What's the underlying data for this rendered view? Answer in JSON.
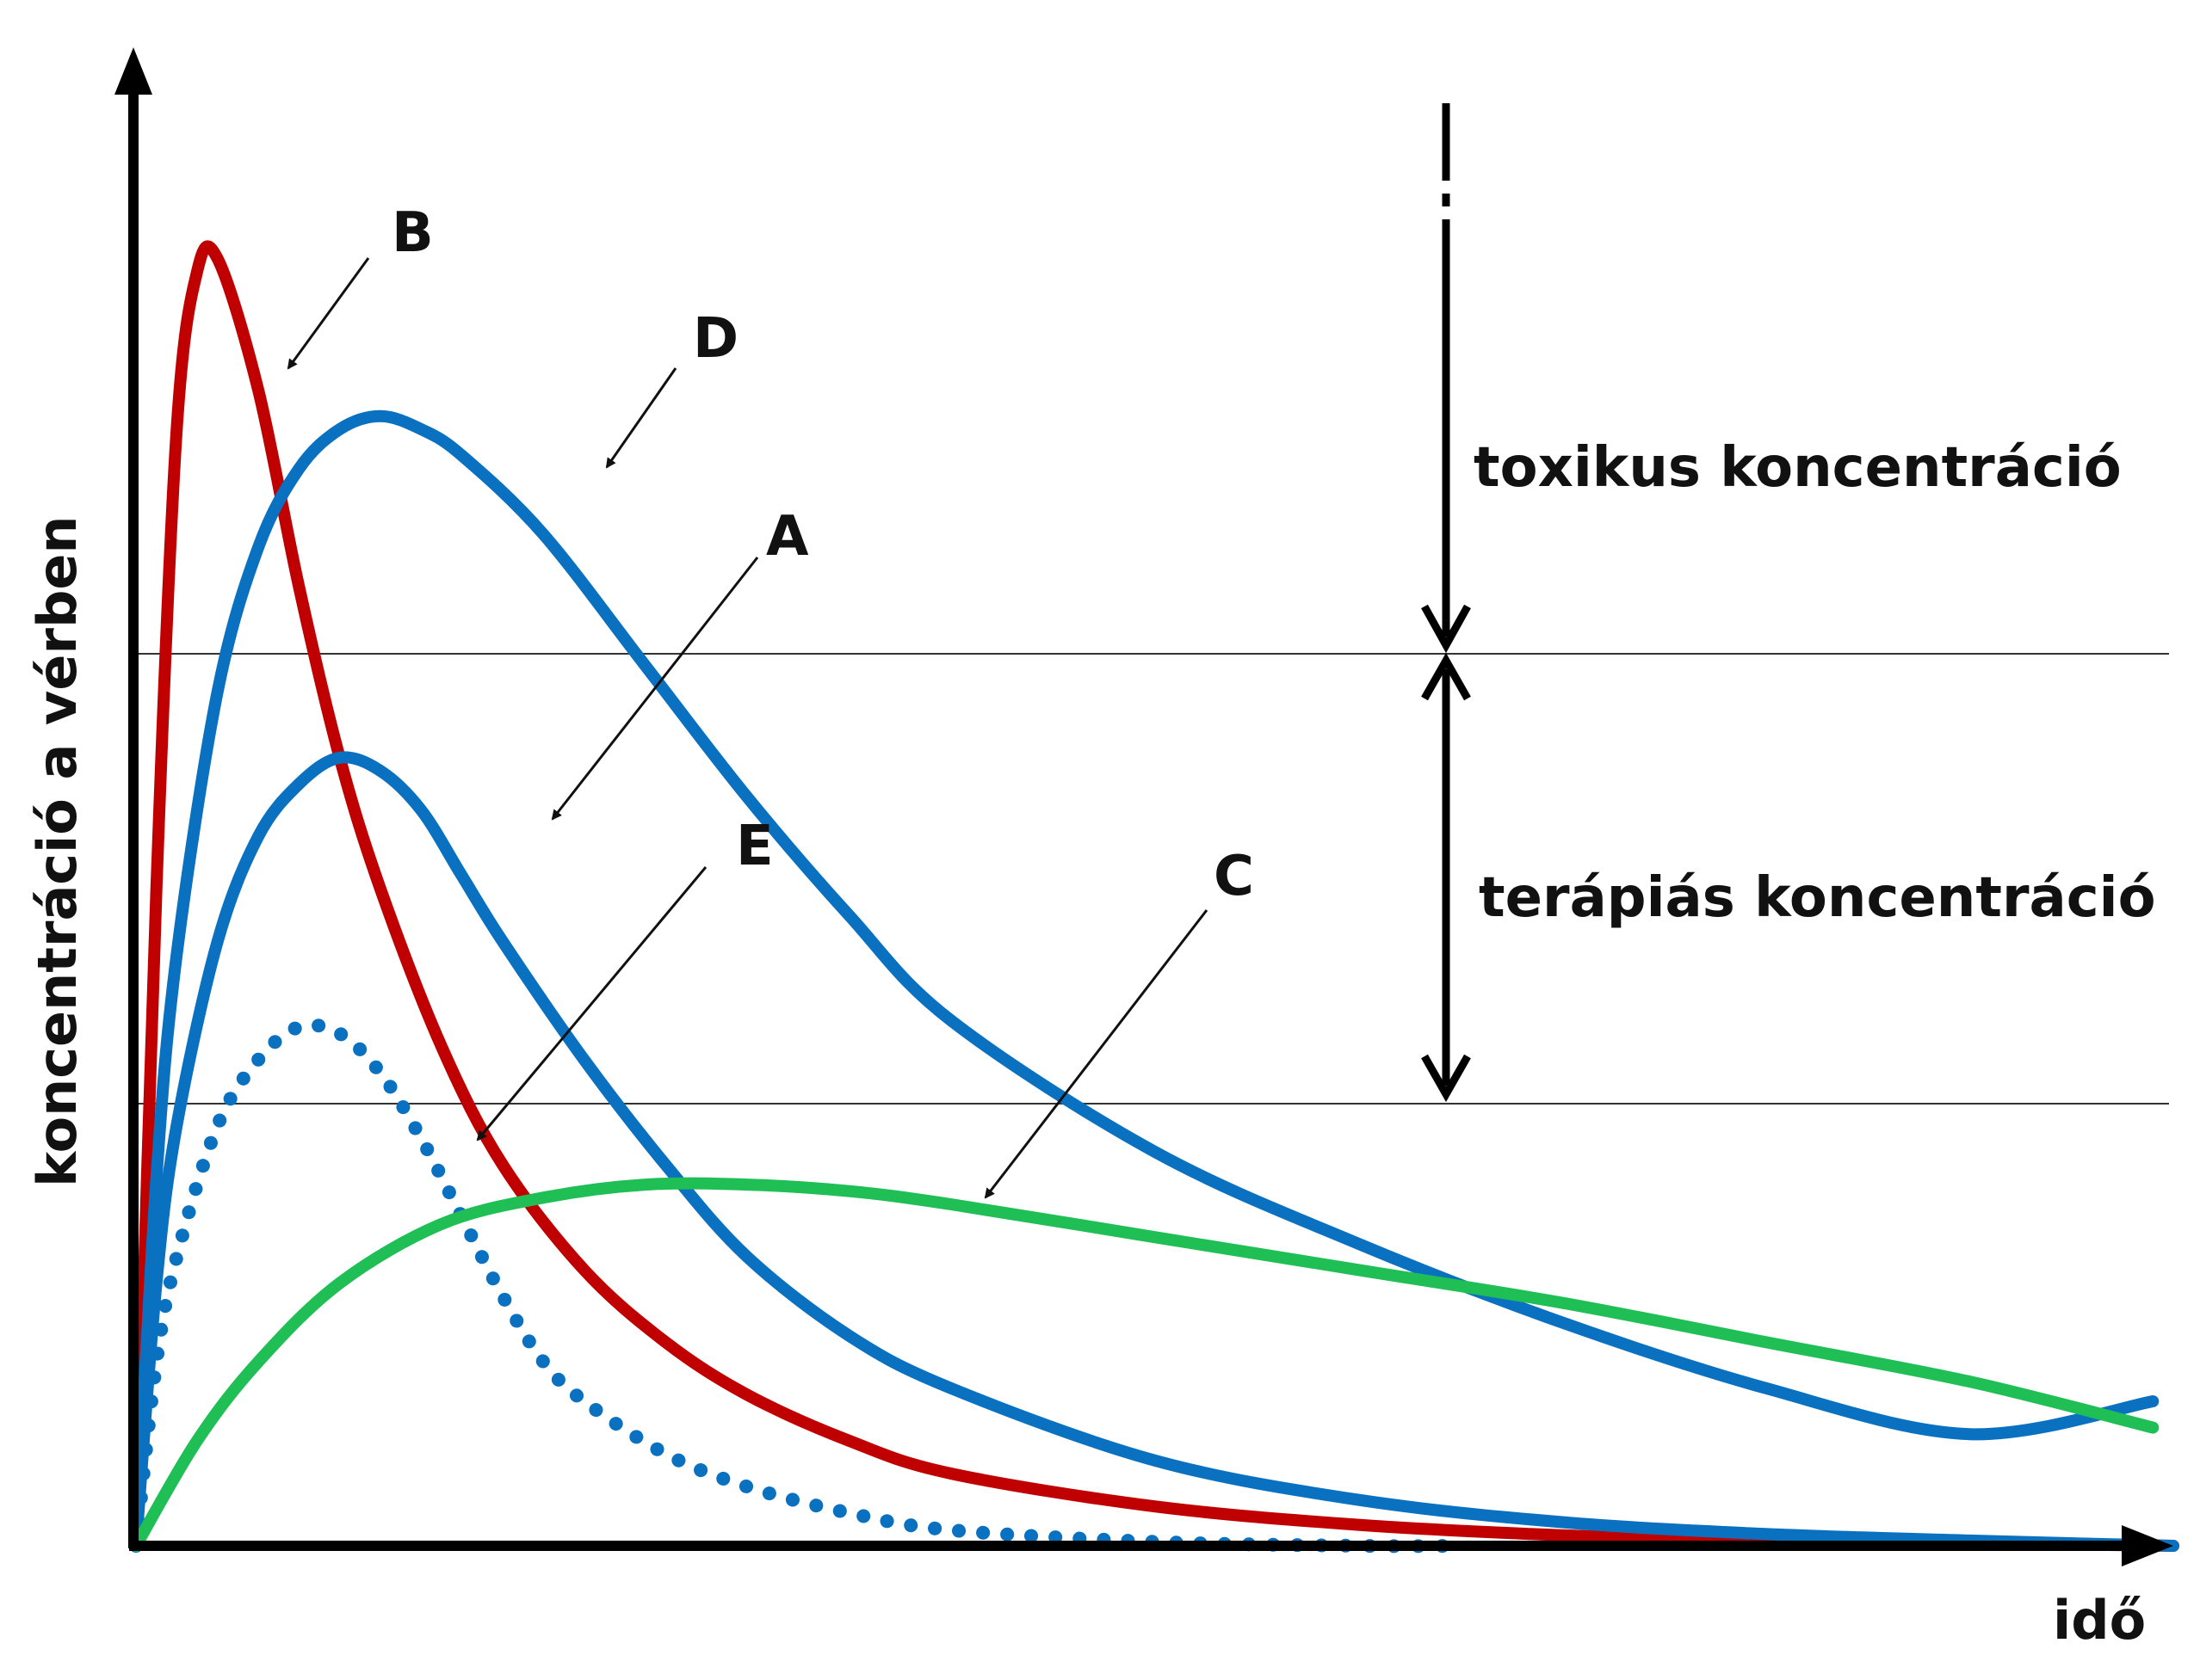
{
  "chart_data": {
    "type": "line",
    "xlabel": "idő",
    "ylabel": "koncentráció a vérben",
    "xlim": [
      0,
      100
    ],
    "ylim": [
      0,
      100
    ],
    "grid": false,
    "thresholds": [
      {
        "name": "toxic",
        "value": 66.7
      },
      {
        "name": "therapeutic_min",
        "value": 33.6
      }
    ],
    "zones": [
      {
        "label": "toxikus koncentráció"
      },
      {
        "label": "terápiás koncentráció"
      }
    ],
    "series": [
      {
        "name": "B",
        "color": "#c00000",
        "dotted": false,
        "x": [
          0,
          1,
          2,
          3,
          4,
          6,
          8,
          10,
          12,
          15,
          18,
          22,
          26,
          30,
          35,
          40,
          50,
          60,
          70,
          80,
          90,
          100
        ],
        "y": [
          0,
          50,
          85,
          97,
          98,
          88,
          73,
          60,
          50,
          38,
          29,
          21,
          15.5,
          11.5,
          8,
          5.5,
          3,
          1.6,
          0.8,
          0.4,
          0.2,
          0
        ]
      },
      {
        "name": "D",
        "color": "#0a70c0",
        "dotted": false,
        "x": [
          0,
          1,
          2,
          4,
          6,
          8,
          10,
          12,
          14,
          16,
          20,
          25,
          30,
          35,
          40,
          50,
          60,
          70,
          80,
          90,
          99
        ],
        "y": [
          0,
          28,
          45,
          65,
          76,
          82,
          85,
          86,
          85,
          83,
          77,
          67,
          57,
          48,
          40,
          30,
          23,
          17,
          12,
          8.5,
          11
        ]
      },
      {
        "name": "A",
        "color": "#0a70c0",
        "dotted": false,
        "x": [
          0,
          1,
          2,
          4,
          6,
          8,
          10,
          12,
          14,
          16,
          18,
          22,
          26,
          30,
          35,
          40,
          50,
          60,
          70,
          80,
          90,
          100
        ],
        "y": [
          0,
          20,
          32,
          46,
          54,
          58,
          60,
          59,
          56,
          51,
          46,
          37,
          29,
          22,
          16,
          12,
          6.5,
          3.5,
          1.8,
          0.9,
          0.4,
          0
        ]
      },
      {
        "name": "E",
        "color": "#0a70c0",
        "dotted": true,
        "x": [
          0,
          1,
          2,
          4,
          6,
          8,
          10,
          12,
          14,
          16,
          18,
          20,
          22,
          26,
          30,
          35,
          40,
          50,
          60,
          65
        ],
        "y": [
          0,
          14,
          22,
          32,
          37,
          39.5,
          39,
          36,
          31,
          25,
          19,
          14,
          11,
          7,
          4.5,
          2.5,
          1.2,
          0.3,
          0,
          0
        ]
      },
      {
        "name": "C",
        "color": "#1fbf55",
        "dotted": false,
        "x": [
          0,
          3,
          6,
          10,
          15,
          20,
          25,
          30,
          35,
          40,
          50,
          60,
          70,
          80,
          90,
          99
        ],
        "y": [
          0,
          8,
          14,
          20,
          24.5,
          26.5,
          27.5,
          27.5,
          27,
          26,
          23.5,
          21,
          18.5,
          15.5,
          12.5,
          9
        ]
      }
    ]
  }
}
